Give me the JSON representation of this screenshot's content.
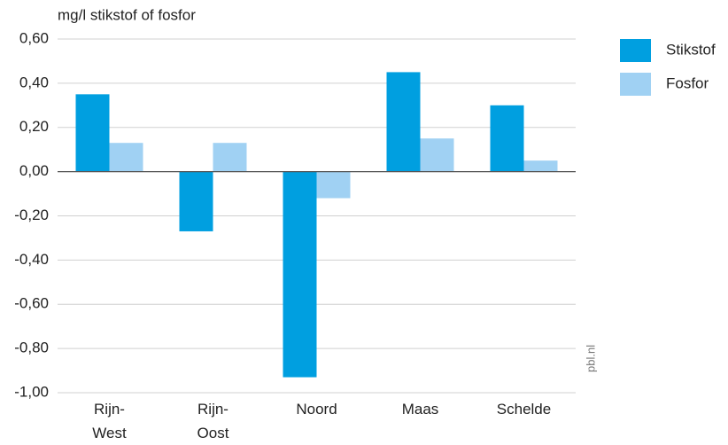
{
  "chart_data": {
    "type": "bar",
    "y_label": "mg/l stikstof of fosfor",
    "watermark": "pbl.nl",
    "categories": [
      "Rijn-\nWest",
      "Rijn-\nOost",
      "Noord",
      "Maas",
      "Schelde"
    ],
    "series": [
      {
        "name": "Stikstof",
        "color": "#009fe0",
        "values": [
          0.35,
          -0.27,
          -0.93,
          0.45,
          0.3
        ]
      },
      {
        "name": "Fosfor",
        "color": "#a0d1f3",
        "values": [
          0.13,
          0.13,
          -0.12,
          0.15,
          0.05
        ]
      }
    ],
    "ylim": [
      -1.0,
      0.6
    ],
    "yticks": [
      {
        "value": -1.0,
        "label": "-1,00"
      },
      {
        "value": -0.8,
        "label": "-0,80"
      },
      {
        "value": -0.6,
        "label": "-0,60"
      },
      {
        "value": -0.4,
        "label": "-0,40"
      },
      {
        "value": -0.2,
        "label": "-0,20"
      },
      {
        "value": 0,
        "label": "0,00"
      },
      {
        "value": 0.2,
        "label": "0,20"
      },
      {
        "value": 0.4,
        "label": "0,40"
      },
      {
        "value": 0.6,
        "label": "0,60"
      }
    ],
    "grid": true,
    "legend": "right"
  }
}
